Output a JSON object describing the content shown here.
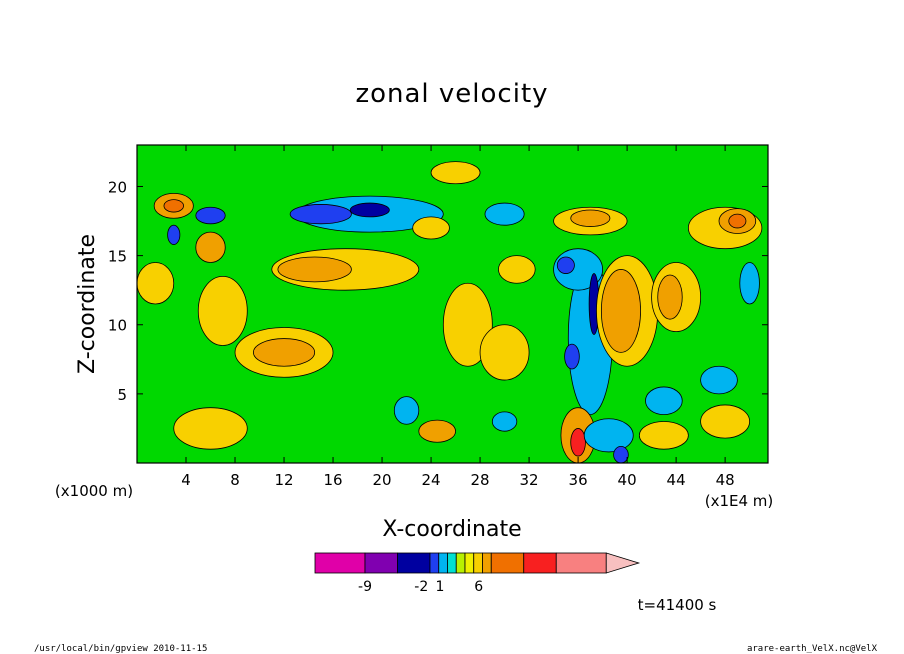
{
  "chart_data": {
    "type": "heatmap",
    "title": "zonal velocity",
    "xlabel": "X-coordinate",
    "ylabel": "Z-coordinate",
    "x_unit": "(x1E4 m)",
    "y_unit": "(x1000 m)",
    "xlim": [
      0,
      51.5
    ],
    "ylim": [
      0,
      23
    ],
    "x_ticks": [
      "4",
      "8",
      "12",
      "16",
      "20",
      "24",
      "28",
      "32",
      "36",
      "40",
      "44",
      "48"
    ],
    "y_ticks": [
      "5",
      "10",
      "15",
      "20"
    ],
    "colorbar": {
      "colors": [
        "#e000a8",
        "#8000b0",
        "#0000a0",
        "#1f3ff0",
        "#00b4f0",
        "#00e0d0",
        "#b8f000",
        "#f0f000",
        "#f8d000",
        "#f0a000",
        "#f07000",
        "#f82020",
        "#f88080",
        "#f8c0c0"
      ],
      "widths": [
        2,
        1.3,
        1.3,
        0.35,
        0.35,
        0.35,
        0.35,
        0.35,
        0.35,
        0.35,
        1.3,
        1.3,
        2,
        1.3
      ],
      "tick_labels": [
        "-9",
        "-2",
        "1",
        "6"
      ],
      "tick_positions": [
        2,
        4.25,
        5.0,
        6.55
      ],
      "arrow_right": true
    },
    "blobs": [
      {
        "cx": 19,
        "cy": 18,
        "rx": 6,
        "ry": 1.3,
        "c": "#00b4f0"
      },
      {
        "cx": 15,
        "cy": 18,
        "rx": 2.5,
        "ry": 0.7,
        "c": "#1f3ff0"
      },
      {
        "cx": 19,
        "cy": 18.3,
        "rx": 1.6,
        "ry": 0.5,
        "c": "#0000a0"
      },
      {
        "cx": 6,
        "cy": 17.9,
        "rx": 1.2,
        "ry": 0.6,
        "c": "#1f3ff0"
      },
      {
        "cx": 3,
        "cy": 16.5,
        "rx": 0.5,
        "ry": 0.7,
        "c": "#1f3ff0"
      },
      {
        "cx": 3,
        "cy": 18.6,
        "rx": 1.6,
        "ry": 0.9,
        "c": "#f0a000"
      },
      {
        "cx": 3,
        "cy": 18.6,
        "rx": 0.8,
        "ry": 0.45,
        "c": "#f07000"
      },
      {
        "cx": 6,
        "cy": 15.6,
        "rx": 1.2,
        "ry": 1.1,
        "c": "#f0a000"
      },
      {
        "cx": 17,
        "cy": 14,
        "rx": 6,
        "ry": 1.5,
        "c": "#f8d000"
      },
      {
        "cx": 14.5,
        "cy": 14,
        "rx": 3,
        "ry": 0.9,
        "c": "#f0a000"
      },
      {
        "cx": 12,
        "cy": 8,
        "rx": 4,
        "ry": 1.8,
        "c": "#f8d000"
      },
      {
        "cx": 12,
        "cy": 8,
        "rx": 2.5,
        "ry": 1,
        "c": "#f0a000"
      },
      {
        "cx": 37,
        "cy": 9,
        "rx": 1.8,
        "ry": 5.5,
        "c": "#00b4f0"
      },
      {
        "cx": 36,
        "cy": 14,
        "rx": 2,
        "ry": 1.5,
        "c": "#00b4f0"
      },
      {
        "cx": 35,
        "cy": 14.3,
        "rx": 0.7,
        "ry": 0.6,
        "c": "#1f3ff0"
      },
      {
        "cx": 35.5,
        "cy": 7.7,
        "rx": 0.6,
        "ry": 0.9,
        "c": "#1f3ff0"
      },
      {
        "cx": 37.3,
        "cy": 11.5,
        "rx": 0.4,
        "ry": 2.2,
        "c": "#0000a0"
      },
      {
        "cx": 40,
        "cy": 11,
        "rx": 2.5,
        "ry": 4,
        "c": "#f8d000"
      },
      {
        "cx": 39.5,
        "cy": 11,
        "rx": 1.6,
        "ry": 3,
        "c": "#f0a000"
      },
      {
        "cx": 36,
        "cy": 2,
        "rx": 1.4,
        "ry": 2,
        "c": "#f0a000"
      },
      {
        "cx": 36,
        "cy": 1.5,
        "rx": 0.6,
        "ry": 1,
        "c": "#f82020"
      },
      {
        "cx": 38.5,
        "cy": 2,
        "rx": 2,
        "ry": 1.2,
        "c": "#00b4f0"
      },
      {
        "cx": 39.5,
        "cy": 0.6,
        "rx": 0.6,
        "ry": 0.6,
        "c": "#1f3ff0"
      },
      {
        "cx": 48,
        "cy": 17,
        "rx": 3,
        "ry": 1.5,
        "c": "#f8d000"
      },
      {
        "cx": 49,
        "cy": 17.5,
        "rx": 1.5,
        "ry": 0.9,
        "c": "#f0a000"
      },
      {
        "cx": 49,
        "cy": 17.5,
        "rx": 0.7,
        "ry": 0.5,
        "c": "#f07000"
      },
      {
        "cx": 37,
        "cy": 17.5,
        "rx": 3,
        "ry": 1,
        "c": "#f8d000"
      },
      {
        "cx": 37,
        "cy": 17.7,
        "rx": 1.6,
        "ry": 0.6,
        "c": "#f0a000"
      },
      {
        "cx": 30,
        "cy": 18,
        "rx": 1.6,
        "ry": 0.8,
        "c": "#00b4f0"
      },
      {
        "cx": 44,
        "cy": 12,
        "rx": 2,
        "ry": 2.5,
        "c": "#f8d000"
      },
      {
        "cx": 43.5,
        "cy": 12,
        "rx": 1,
        "ry": 1.6,
        "c": "#f0a000"
      },
      {
        "cx": 50,
        "cy": 13,
        "rx": 0.8,
        "ry": 1.5,
        "c": "#00b4f0"
      },
      {
        "cx": 47.5,
        "cy": 6,
        "rx": 1.5,
        "ry": 1,
        "c": "#00b4f0"
      },
      {
        "cx": 43,
        "cy": 4.5,
        "rx": 1.5,
        "ry": 1,
        "c": "#00b4f0"
      },
      {
        "cx": 22,
        "cy": 3.8,
        "rx": 1,
        "ry": 1,
        "c": "#00b4f0"
      },
      {
        "cx": 30,
        "cy": 3,
        "rx": 1,
        "ry": 0.7,
        "c": "#00b4f0"
      },
      {
        "cx": 24.5,
        "cy": 2.3,
        "rx": 1.5,
        "ry": 0.8,
        "c": "#f0a000"
      },
      {
        "cx": 6,
        "cy": 2.5,
        "rx": 3,
        "ry": 1.5,
        "c": "#f8d000"
      },
      {
        "cx": 27,
        "cy": 10,
        "rx": 2,
        "ry": 3,
        "c": "#f8d000"
      },
      {
        "cx": 30,
        "cy": 8,
        "rx": 2,
        "ry": 2,
        "c": "#f8d000"
      },
      {
        "cx": 7,
        "cy": 11,
        "rx": 2,
        "ry": 2.5,
        "c": "#f8d000"
      },
      {
        "cx": 43,
        "cy": 2,
        "rx": 2,
        "ry": 1,
        "c": "#f8d000"
      },
      {
        "cx": 48,
        "cy": 3,
        "rx": 2,
        "ry": 1.2,
        "c": "#f8d000"
      },
      {
        "cx": 24,
        "cy": 17,
        "rx": 1.5,
        "ry": 0.8,
        "c": "#f8d000"
      },
      {
        "cx": 26,
        "cy": 21,
        "rx": 2,
        "ry": 0.8,
        "c": "#f8d000"
      },
      {
        "cx": 1.5,
        "cy": 13,
        "rx": 1.5,
        "ry": 1.5,
        "c": "#f8d000"
      },
      {
        "cx": 31,
        "cy": 14,
        "rx": 1.5,
        "ry": 1,
        "c": "#f8d000"
      }
    ]
  },
  "time_label": "t=41400 s",
  "footer": {
    "left": "/usr/local/bin/gpview   2010-11-15",
    "right": "arare-earth_VelX.nc@VelX"
  }
}
